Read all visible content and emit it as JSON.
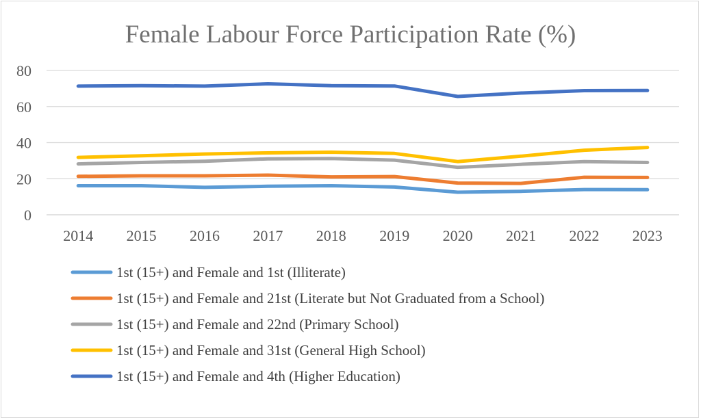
{
  "chart_data": {
    "type": "line",
    "title": "Female Labour Force Participation Rate (%)",
    "xlabel": "",
    "ylabel": "",
    "x": [
      "2014",
      "2015",
      "2016",
      "2017",
      "2018",
      "2019",
      "2020",
      "2021",
      "2022",
      "2023"
    ],
    "ylim": [
      0,
      80
    ],
    "yticks": [
      0,
      20,
      40,
      60,
      80
    ],
    "grid": true,
    "legend": "bottom",
    "series": [
      {
        "name": "1st (15+) and Female and 1st (Illiterate)",
        "color": "#5b9bd5",
        "values": [
          16.1,
          16.1,
          15.2,
          15.8,
          16.1,
          15.4,
          12.5,
          13.0,
          14.0,
          13.9
        ]
      },
      {
        "name": "1st (15+) and Female and 21st (Literate but Not Graduated from a School)",
        "color": "#ed7d31",
        "values": [
          21.3,
          21.6,
          21.6,
          22.0,
          21.0,
          21.2,
          17.6,
          17.4,
          20.8,
          20.7
        ]
      },
      {
        "name": "1st (15+) and Female and 22nd (Primary School)",
        "color": "#a5a5a5",
        "values": [
          28.2,
          29.0,
          29.7,
          31.0,
          31.2,
          30.3,
          26.3,
          28.0,
          29.5,
          29.0
        ]
      },
      {
        "name": "1st (15+) and Female and 31st (General High School)",
        "color": "#ffc000",
        "values": [
          31.8,
          32.7,
          33.7,
          34.3,
          34.7,
          34.0,
          29.5,
          32.5,
          35.8,
          37.3
        ]
      },
      {
        "name": "1st (15+) and Female and 4th (Higher Education)",
        "color": "#4472c4",
        "values": [
          71.3,
          71.6,
          71.3,
          72.6,
          71.6,
          71.4,
          65.6,
          67.5,
          68.8,
          68.9
        ]
      }
    ]
  }
}
